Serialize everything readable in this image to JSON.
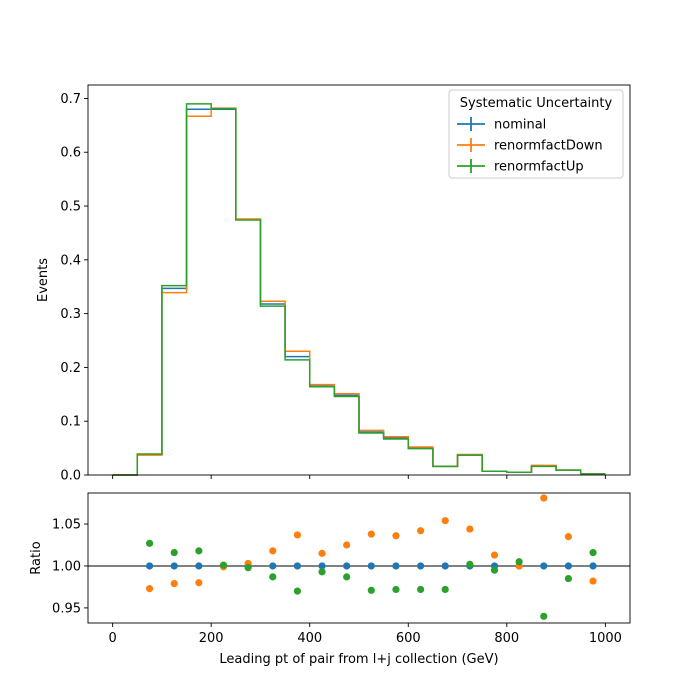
{
  "chart_data": {
    "type": "histogram-with-ratio",
    "bin_edges": [
      0,
      50,
      100,
      150,
      200,
      250,
      300,
      350,
      400,
      450,
      500,
      550,
      600,
      650,
      700,
      750,
      800,
      850,
      900,
      950,
      1000
    ],
    "xlabel": "Leading pt of pair from l+j collection (GeV)",
    "xlim": [
      -50,
      1050
    ],
    "xticks": [
      0,
      200,
      400,
      600,
      800,
      1000
    ],
    "top": {
      "ylabel": "Events",
      "ylim": [
        0,
        0.725
      ],
      "yticks": [
        0.0,
        0.1,
        0.2,
        0.3,
        0.4,
        0.5,
        0.6,
        0.7
      ],
      "series": [
        {
          "name": "nominal",
          "color": "#1f77b4",
          "values": [
            0.0,
            0.038,
            0.347,
            0.68,
            0.68,
            0.475,
            0.318,
            0.22,
            0.165,
            0.148,
            0.08,
            0.069,
            0.05,
            0.016,
            0.037,
            0.007,
            0.005,
            0.017,
            0.009,
            0.002
          ]
        },
        {
          "name": "renormfactDown",
          "color": "#ff7f0e",
          "values": [
            0.0,
            0.037,
            0.339,
            0.667,
            0.682,
            0.476,
            0.323,
            0.23,
            0.168,
            0.151,
            0.083,
            0.071,
            0.052,
            0.016,
            0.038,
            0.007,
            0.005,
            0.018,
            0.009,
            0.002
          ]
        },
        {
          "name": "renormfactUp",
          "color": "#2ca02c",
          "values": [
            0.0,
            0.039,
            0.352,
            0.69,
            0.681,
            0.474,
            0.314,
            0.214,
            0.164,
            0.146,
            0.078,
            0.067,
            0.049,
            0.016,
            0.037,
            0.007,
            0.005,
            0.016,
            0.009,
            0.002
          ]
        }
      ]
    },
    "bottom": {
      "ylabel": "Ratio",
      "ylim": [
        0.932,
        1.087
      ],
      "yticks": [
        0.95,
        1.0,
        1.05
      ],
      "reference_line": 1.0,
      "x_centers": [
        75,
        125,
        175,
        225,
        275,
        325,
        375,
        425,
        475,
        525,
        575,
        625,
        675,
        725,
        775,
        825,
        875,
        925,
        975
      ],
      "series": [
        {
          "name": "nominal",
          "color": "#1f77b4",
          "values": [
            1.0,
            1.0,
            1.0,
            1.0,
            1.0,
            1.0,
            1.0,
            1.0,
            1.0,
            1.0,
            1.0,
            1.0,
            1.0,
            1.0,
            1.0,
            1.0,
            1.0,
            1.0,
            1.0
          ]
        },
        {
          "name": "renormfactDown",
          "color": "#ff7f0e",
          "values": [
            0.973,
            0.979,
            0.98,
            0.999,
            1.003,
            1.018,
            1.037,
            1.015,
            1.025,
            1.038,
            1.036,
            1.042,
            1.054,
            1.044,
            1.013,
            1.0,
            1.081,
            1.035,
            0.982
          ]
        },
        {
          "name": "renormfactUp",
          "color": "#2ca02c",
          "values": [
            1.027,
            1.016,
            1.018,
            1.001,
            0.998,
            0.987,
            0.97,
            0.993,
            0.987,
            0.971,
            0.972,
            0.972,
            0.972,
            1.002,
            0.995,
            1.005,
            0.94,
            0.985,
            1.016
          ]
        }
      ]
    },
    "legend": {
      "title": "Systematic Uncertainty",
      "placement": "top-right",
      "entries": [
        "nominal",
        "renormfactDown",
        "renormfactUp"
      ]
    }
  }
}
